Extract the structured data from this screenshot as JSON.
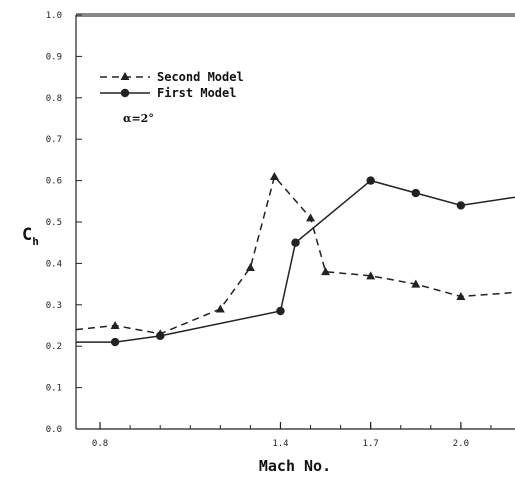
{
  "chart_data": {
    "type": "line",
    "xlabel": "Mach No.",
    "ylabel": "C",
    "ylabel_sub": "h",
    "annotation": "α=2°",
    "xlim": [
      0.72,
      2.18
    ],
    "ylim": [
      0.0,
      1.0
    ],
    "xticks": [
      {
        "value": 0.8,
        "label": "0.8"
      },
      {
        "value": 1.4,
        "label": "1.4"
      },
      {
        "value": 1.7,
        "label": "1.7"
      },
      {
        "value": 2.0,
        "label": "2.0"
      }
    ],
    "yticks": [
      {
        "value": 0.0,
        "label": "0.0"
      },
      {
        "value": 0.1,
        "label": "0.1"
      },
      {
        "value": 0.2,
        "label": "0.2"
      },
      {
        "value": 0.3,
        "label": "0.3"
      },
      {
        "value": 0.4,
        "label": "0.4"
      },
      {
        "value": 0.5,
        "label": "0.5"
      },
      {
        "value": 0.6,
        "label": "0.6"
      },
      {
        "value": 0.7,
        "label": "0.7"
      },
      {
        "value": 0.8,
        "label": "0.8"
      },
      {
        "value": 0.9,
        "label": "0.9"
      },
      {
        "value": 1.0,
        "label": "1.0"
      }
    ],
    "grid": false,
    "legend_position": "top-left",
    "series": [
      {
        "name": "Second Model",
        "line_style": "dashed",
        "marker": "triangle",
        "color": "#222222",
        "x": [
          0.72,
          0.85,
          1.0,
          1.2,
          1.3,
          1.38,
          1.5,
          1.55,
          1.7,
          1.85,
          2.0,
          2.18
        ],
        "y": [
          0.24,
          0.25,
          0.23,
          0.29,
          0.39,
          0.61,
          0.51,
          0.38,
          0.37,
          0.35,
          0.32,
          0.33
        ]
      },
      {
        "name": "First Model",
        "line_style": "solid",
        "marker": "circle",
        "color": "#222222",
        "x": [
          0.72,
          0.85,
          1.0,
          1.4,
          1.45,
          1.7,
          1.85,
          2.0,
          2.18
        ],
        "y": [
          0.21,
          0.21,
          0.225,
          0.285,
          0.45,
          0.6,
          0.57,
          0.54,
          0.56
        ]
      }
    ]
  }
}
